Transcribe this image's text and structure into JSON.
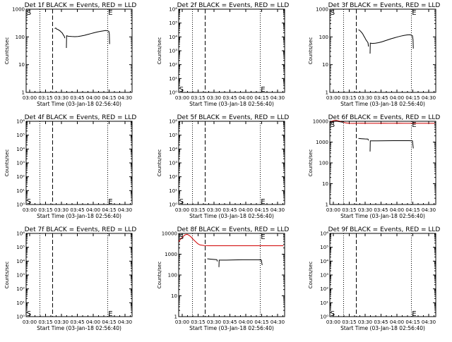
{
  "figure": {
    "xlabel": "Start Time (03-Jan-18 02:56:40)",
    "ylabel": "Counts/sec",
    "x_tick_labels": [
      "03:00",
      "03:15",
      "03:30",
      "03:45",
      "04:00",
      "04:15",
      "04:30"
    ],
    "x_ticks_minutes": [
      3.33,
      18.33,
      33.33,
      48.33,
      63.33,
      78.33,
      93.33
    ],
    "x_range_minutes": [
      0,
      100
    ],
    "dotted_lines_minutes": [
      13,
      77
    ],
    "dashed_line_minutes": [
      25
    ],
    "colors": {
      "events": "#000000",
      "lld": "#d00000"
    }
  },
  "chart_data": [
    {
      "type": "line",
      "title": "Det 1f BLACK = Events, RED = LLD",
      "y_scale": "log",
      "ylim": [
        1,
        1000
      ],
      "y_ticks": [
        {
          "v": 1,
          "label": "1"
        },
        {
          "v": 10,
          "label": "10"
        },
        {
          "v": 100,
          "label": "100"
        },
        {
          "v": 1000,
          "label": "1000"
        }
      ],
      "markers": {
        "S": {
          "x": 0.5,
          "y": 1000
        },
        "E": {
          "x": 77.5,
          "y": 1000
        }
      },
      "series": [
        {
          "color": "events",
          "segments": [
            [
              [
                27,
                200
              ],
              [
                28,
                210
              ],
              [
                29,
                190
              ],
              [
                30,
                185
              ],
              [
                31,
                175
              ],
              [
                32,
                165
              ],
              [
                33,
                150
              ],
              [
                34,
                140
              ],
              [
                35,
                120
              ],
              [
                36,
                105
              ],
              [
                36.5,
                90
              ]
            ],
            [
              [
                38,
                40
              ],
              [
                38.2,
                110
              ],
              [
                40,
                105
              ],
              [
                43,
                103
              ],
              [
                46,
                102
              ],
              [
                49,
                104
              ],
              [
                52,
                108
              ],
              [
                55,
                114
              ],
              [
                58,
                122
              ],
              [
                61,
                131
              ],
              [
                64,
                141
              ],
              [
                67,
                150
              ],
              [
                70,
                158
              ],
              [
                73,
                165
              ],
              [
                75,
                170
              ],
              [
                76,
                168
              ],
              [
                77,
                165
              ],
              [
                78,
                160
              ],
              [
                78.5,
                130
              ],
              [
                78.8,
                55
              ]
            ]
          ]
        }
      ]
    },
    {
      "type": "line",
      "title": "Det 2f BLACK = Events, RED = LLD",
      "y_scale": "log",
      "ylim": [
        1,
        1000000
      ],
      "y_ticks": [
        {
          "v": 1,
          "label": "10⁰"
        },
        {
          "v": 10,
          "label": "10¹"
        },
        {
          "v": 100,
          "label": "10²"
        },
        {
          "v": 1000,
          "label": "10³"
        },
        {
          "v": 10000,
          "label": "10⁴"
        },
        {
          "v": 100000,
          "label": "10⁵"
        },
        {
          "v": 1000000,
          "label": "10⁶"
        }
      ],
      "markers": {
        "S": {
          "x": 0.5,
          "y": 2
        },
        "E": {
          "x": 77.5,
          "y": 1
        }
      },
      "series": []
    },
    {
      "type": "line",
      "title": "Det 3f BLACK = Events, RED = LLD",
      "y_scale": "log",
      "ylim": [
        1,
        1000
      ],
      "y_ticks": [
        {
          "v": 1,
          "label": "1"
        },
        {
          "v": 10,
          "label": "10"
        },
        {
          "v": 100,
          "label": "100"
        },
        {
          "v": 1000,
          "label": "1000"
        }
      ],
      "markers": {
        "S": {
          "x": 0.5,
          "y": 1000
        },
        "E": {
          "x": 77.5,
          "y": 1000
        }
      },
      "series": [
        {
          "color": "events",
          "segments": [
            [
              [
                27,
                180
              ],
              [
                28,
                175
              ],
              [
                29,
                160
              ],
              [
                30,
                145
              ],
              [
                31,
                130
              ],
              [
                32,
                110
              ],
              [
                33,
                95
              ],
              [
                34,
                80
              ],
              [
                35,
                70
              ],
              [
                36,
                62
              ],
              [
                36.5,
                45
              ]
            ],
            [
              [
                38,
                25
              ],
              [
                38.2,
                60
              ],
              [
                40,
                58
              ],
              [
                43,
                59
              ],
              [
                46,
                62
              ],
              [
                49,
                66
              ],
              [
                52,
                72
              ],
              [
                55,
                79
              ],
              [
                58,
                86
              ],
              [
                61,
                93
              ],
              [
                64,
                100
              ],
              [
                67,
                107
              ],
              [
                70,
                113
              ],
              [
                73,
                118
              ],
              [
                75,
                120
              ],
              [
                76,
                119
              ],
              [
                77,
                115
              ],
              [
                78,
                110
              ],
              [
                78.5,
                80
              ],
              [
                78.8,
                38
              ]
            ]
          ]
        }
      ]
    },
    {
      "type": "line",
      "title": "Det 4f BLACK = Events, RED = LLD",
      "y_scale": "log",
      "ylim": [
        1,
        1000000
      ],
      "y_ticks": [
        {
          "v": 1,
          "label": "10⁰"
        },
        {
          "v": 10,
          "label": "10¹"
        },
        {
          "v": 100,
          "label": "10²"
        },
        {
          "v": 1000,
          "label": "10³"
        },
        {
          "v": 10000,
          "label": "10⁴"
        },
        {
          "v": 100000,
          "label": "10⁵"
        },
        {
          "v": 1000000,
          "label": "10⁶"
        }
      ],
      "markers": {
        "S": {
          "x": 0.5,
          "y": 2
        },
        "E": {
          "x": 77.5,
          "y": 2
        }
      },
      "series": []
    },
    {
      "type": "line",
      "title": "Det 5f BLACK = Events, RED = LLD",
      "y_scale": "log",
      "ylim": [
        1,
        1000000
      ],
      "y_ticks": [
        {
          "v": 1,
          "label": "10⁰"
        },
        {
          "v": 10,
          "label": "10¹"
        },
        {
          "v": 100,
          "label": "10²"
        },
        {
          "v": 1000,
          "label": "10³"
        },
        {
          "v": 10000,
          "label": "10⁴"
        },
        {
          "v": 100000,
          "label": "10⁵"
        },
        {
          "v": 1000000,
          "label": "10⁶"
        }
      ],
      "markers": {
        "S": {
          "x": 0.5,
          "y": 2
        },
        "E": {
          "x": 77.5,
          "y": 2
        }
      },
      "series": []
    },
    {
      "type": "line",
      "title": "Det 6f BLACK = Events, RED = LLD",
      "y_scale": "log",
      "ylim": [
        1,
        10000
      ],
      "y_ticks": [
        {
          "v": 1,
          "label": "1"
        },
        {
          "v": 10,
          "label": "10"
        },
        {
          "v": 100,
          "label": "100"
        },
        {
          "v": 1000,
          "label": "1000"
        },
        {
          "v": 10000,
          "label": "10000"
        }
      ],
      "markers": {
        "S": {
          "x": 0.5,
          "y": 10000
        },
        "E": {
          "x": 77.5,
          "y": 10000
        }
      },
      "series": [
        {
          "color": "lld",
          "segments": [
            [
              [
                0,
                9000
              ],
              [
                3,
                10500
              ],
              [
                6,
                11000
              ],
              [
                9,
                10200
              ],
              [
                12,
                9200
              ],
              [
                15,
                8400
              ],
              [
                18,
                8000
              ],
              [
                22,
                7900
              ],
              [
                26,
                8000
              ],
              [
                30,
                8100
              ],
              [
                35,
                8000
              ],
              [
                40,
                8000
              ],
              [
                45,
                8000
              ],
              [
                50,
                8050
              ],
              [
                55,
                8000
              ],
              [
                60,
                8000
              ],
              [
                65,
                8050
              ],
              [
                70,
                8000
              ],
              [
                75,
                8000
              ],
              [
                80,
                8000
              ],
              [
                85,
                8000
              ],
              [
                90,
                8000
              ],
              [
                95,
                8000
              ],
              [
                99,
                8000
              ]
            ]
          ]
        },
        {
          "color": "events",
          "segments": [
            [
              [
                0,
                9000
              ],
              [
                3,
                9800
              ],
              [
                6,
                10200
              ],
              [
                9,
                9600
              ],
              [
                12,
                9100
              ],
              [
                13,
                9000
              ]
            ],
            [
              [
                27,
                1500
              ],
              [
                30,
                1450
              ],
              [
                33,
                1420
              ],
              [
                36,
                1400
              ],
              [
                36.5,
                1200
              ]
            ],
            [
              [
                38,
                350
              ],
              [
                38.2,
                1150
              ],
              [
                45,
                1150
              ],
              [
                52,
                1160
              ],
              [
                60,
                1170
              ],
              [
                68,
                1170
              ],
              [
                75,
                1170
              ],
              [
                78,
                1150
              ],
              [
                78.8,
                500
              ]
            ]
          ]
        }
      ]
    },
    {
      "type": "line",
      "title": "Det 7f BLACK = Events, RED = LLD",
      "y_scale": "log",
      "ylim": [
        1,
        1000000
      ],
      "y_ticks": [
        {
          "v": 1,
          "label": "10⁰"
        },
        {
          "v": 10,
          "label": "10¹"
        },
        {
          "v": 100,
          "label": "10²"
        },
        {
          "v": 1000,
          "label": "10³"
        },
        {
          "v": 10000,
          "label": "10⁴"
        },
        {
          "v": 100000,
          "label": "10⁵"
        },
        {
          "v": 1000000,
          "label": "10⁶"
        }
      ],
      "markers": {
        "S": {
          "x": 0.5,
          "y": 2
        },
        "E": {
          "x": 77.5,
          "y": 2
        }
      },
      "series": []
    },
    {
      "type": "line",
      "title": "Det 8f BLACK = Events, RED = LLD",
      "y_scale": "log",
      "ylim": [
        1,
        10000
      ],
      "y_ticks": [
        {
          "v": 1,
          "label": "1"
        },
        {
          "v": 10,
          "label": "10"
        },
        {
          "v": 100,
          "label": "100"
        },
        {
          "v": 1000,
          "label": "1000"
        },
        {
          "v": 10000,
          "label": "10000"
        }
      ],
      "markers": {
        "S": {
          "x": 0.5,
          "y": 10000
        },
        "E": {
          "x": 77.5,
          "y": 10000
        }
      },
      "series": [
        {
          "color": "lld",
          "segments": [
            [
              [
                0,
                4000
              ],
              [
                2,
                5500
              ],
              [
                4,
                7000
              ],
              [
                6,
                8500
              ],
              [
                8,
                9000
              ],
              [
                10,
                8000
              ],
              [
                12,
                6500
              ],
              [
                14,
                5000
              ],
              [
                16,
                4000
              ],
              [
                18,
                3200
              ],
              [
                20,
                2800
              ],
              [
                24,
                2600
              ],
              [
                30,
                2550
              ],
              [
                40,
                2550
              ],
              [
                50,
                2550
              ],
              [
                60,
                2550
              ],
              [
                70,
                2550
              ],
              [
                80,
                2550
              ],
              [
                90,
                2550
              ],
              [
                99,
                2550
              ]
            ]
          ]
        },
        {
          "color": "events",
          "segments": [
            [
              [
                27,
                600
              ],
              [
                30,
                580
              ],
              [
                33,
                560
              ],
              [
                36,
                550
              ],
              [
                36.5,
                450
              ]
            ],
            [
              [
                38,
                240
              ],
              [
                38.2,
                520
              ],
              [
                45,
                520
              ],
              [
                52,
                530
              ],
              [
                60,
                540
              ],
              [
                68,
                540
              ],
              [
                75,
                540
              ],
              [
                78,
                530
              ],
              [
                78.8,
                300
              ]
            ]
          ]
        }
      ]
    },
    {
      "type": "line",
      "title": "Det 9f BLACK = Events, RED = LLD",
      "y_scale": "log",
      "ylim": [
        1,
        1000000
      ],
      "y_ticks": [
        {
          "v": 1,
          "label": "10⁰"
        },
        {
          "v": 10,
          "label": "10¹"
        },
        {
          "v": 100,
          "label": "10²"
        },
        {
          "v": 1000,
          "label": "10³"
        },
        {
          "v": 10000,
          "label": "10⁴"
        },
        {
          "v": 100000,
          "label": "10⁵"
        },
        {
          "v": 1000000,
          "label": "10⁶"
        }
      ],
      "markers": {
        "S": {
          "x": 0.5,
          "y": 2
        },
        "E": {
          "x": 77.5,
          "y": 2
        }
      },
      "series": []
    }
  ]
}
